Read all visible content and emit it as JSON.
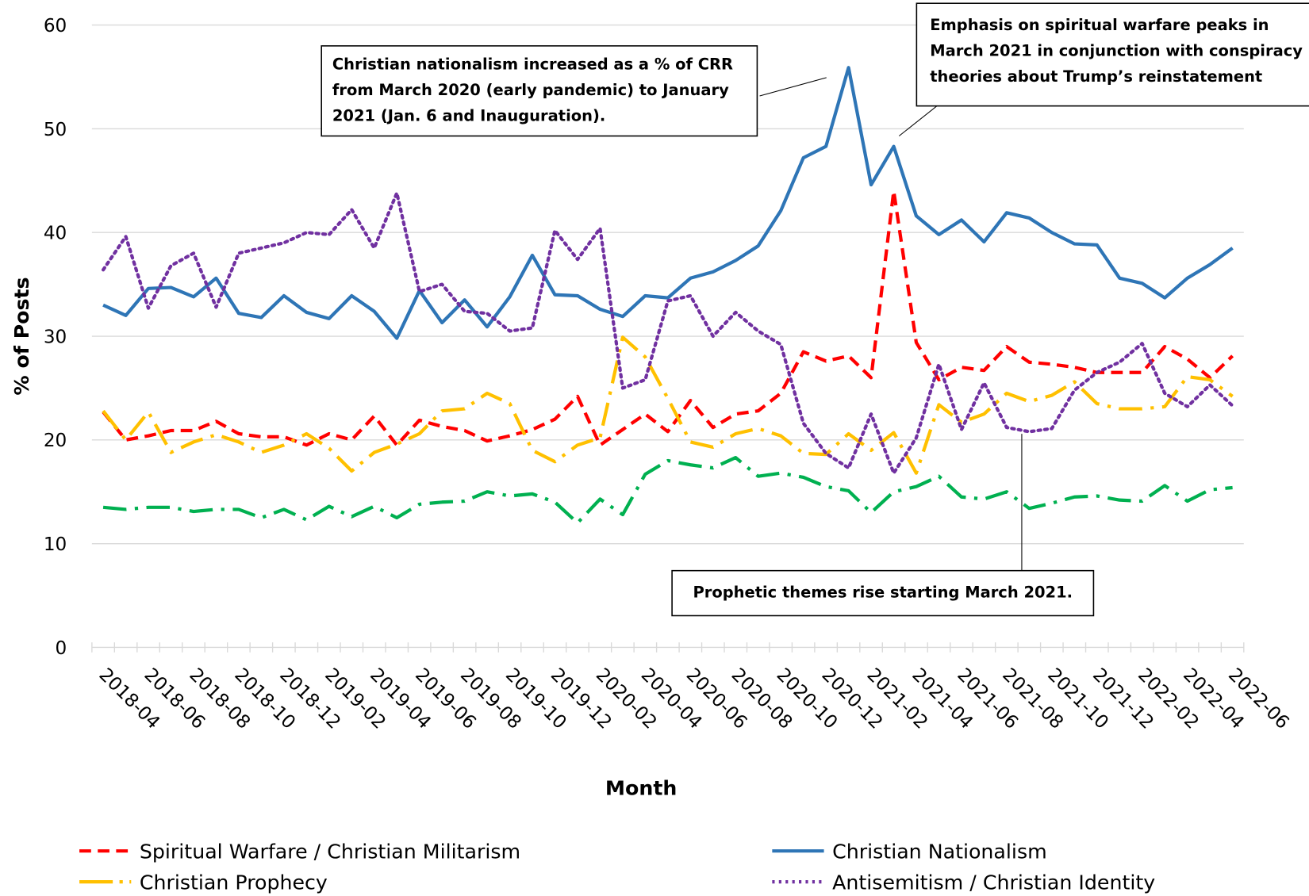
{
  "chart_data": {
    "type": "line",
    "x_label": "Month",
    "y_label": "% of Posts",
    "categories": [
      "2018-04",
      null,
      "2018-06",
      null,
      "2018-08",
      null,
      "2018-10",
      null,
      "2018-12",
      null,
      "2019-02",
      null,
      "2019-04",
      null,
      "2019-06",
      null,
      "2019-08",
      null,
      "2019-10",
      null,
      "2019-12",
      null,
      "2020-02",
      null,
      "2020-04",
      null,
      "2020-06",
      null,
      "2020-08",
      null,
      "2020-10",
      null,
      "2020-12",
      null,
      "2021-02",
      null,
      "2021-04",
      null,
      "2021-06",
      null,
      "2021-08",
      null,
      "2021-10",
      null,
      "2021-12",
      null,
      "2022-02",
      null,
      "2022-04",
      null,
      "2022-06"
    ],
    "ylim": [
      0,
      60
    ],
    "yticks": [
      0,
      10,
      20,
      30,
      40,
      50,
      60
    ],
    "grid": true,
    "series": [
      {
        "name": "Spiritual Warfare / Christian Militarism",
        "color": "#ff0000",
        "line_style": "dashed",
        "values": [
          22.7,
          20.0,
          20.4,
          20.9,
          20.9,
          21.8,
          20.6,
          20.3,
          20.3,
          19.5,
          20.6,
          20.0,
          22.3,
          19.5,
          21.9,
          21.3,
          20.9,
          19.9,
          20.4,
          21.0,
          22.0,
          24.2,
          19.5,
          21.0,
          22.5,
          20.8,
          23.8,
          21.2,
          22.5,
          22.8,
          24.5,
          28.5,
          27.6,
          28.1,
          26.0,
          44.0,
          29.4,
          25.8,
          27.0,
          26.7,
          29.0,
          27.5,
          27.3,
          27.0,
          26.5,
          26.5,
          26.5,
          29.0,
          27.8,
          26.0,
          28.1
        ]
      },
      {
        "name": "Christian Nationalism",
        "color": "#2e75b6",
        "line_style": "solid",
        "values": [
          33.0,
          32.0,
          34.6,
          34.7,
          33.8,
          35.6,
          32.2,
          31.8,
          33.9,
          32.3,
          31.7,
          33.9,
          32.4,
          29.8,
          34.4,
          31.3,
          33.5,
          30.9,
          33.8,
          37.8,
          34.0,
          33.9,
          32.6,
          31.9,
          33.9,
          33.7,
          35.6,
          36.2,
          37.3,
          38.7,
          42.1,
          47.2,
          48.3,
          55.9,
          44.6,
          48.3,
          41.6,
          39.8,
          41.2,
          39.1,
          41.9,
          41.4,
          40.0,
          38.9,
          38.8,
          35.6,
          35.1,
          33.7,
          35.6,
          36.9,
          38.5
        ]
      },
      {
        "name": "Christian Prophecy",
        "color": "#ffc000",
        "line_style": "dashdot",
        "values": [
          22.8,
          20.0,
          22.7,
          18.8,
          19.8,
          20.5,
          19.8,
          18.8,
          19.5,
          20.6,
          19.2,
          17.0,
          18.8,
          19.6,
          20.6,
          22.8,
          23.0,
          24.5,
          23.5,
          19.0,
          17.9,
          19.5,
          20.2,
          29.9,
          28.0,
          24.0,
          19.8,
          19.3,
          20.6,
          21.1,
          20.4,
          18.7,
          18.6,
          20.6,
          19.0,
          20.7,
          16.8,
          23.4,
          21.7,
          22.5,
          24.5,
          23.7,
          24.3,
          25.6,
          23.5,
          23.0,
          23.0,
          23.2,
          26.1,
          25.8,
          24.2
        ]
      },
      {
        "name": "Antisemitism / Christian Identity",
        "color": "#7030a0",
        "line_style": "dotted",
        "values": [
          36.4,
          39.6,
          32.7,
          36.8,
          38.0,
          32.8,
          38.0,
          38.5,
          39.0,
          40.0,
          39.8,
          42.2,
          38.5,
          43.8,
          34.3,
          35.0,
          32.4,
          32.2,
          30.5,
          30.8,
          40.2,
          37.4,
          40.4,
          25.0,
          25.8,
          33.4,
          33.9,
          30.0,
          32.3,
          30.5,
          29.2,
          21.6,
          18.7,
          17.3,
          22.5,
          16.8,
          20.2,
          27.3,
          21.0,
          25.5,
          21.2,
          20.8,
          21.1,
          24.8,
          26.5,
          27.5,
          29.3,
          24.5,
          23.2,
          25.3,
          23.3
        ]
      },
      {
        "color": "#00b050",
        "line_style": "dashdot",
        "values": [
          13.5,
          13.3,
          13.5,
          13.5,
          13.1,
          13.3,
          13.3,
          12.5,
          13.3,
          12.3,
          13.6,
          12.6,
          13.6,
          12.5,
          13.8,
          14.0,
          14.1,
          15.0,
          14.6,
          14.8,
          14.0,
          12.0,
          14.3,
          12.8,
          16.7,
          18.0,
          17.6,
          17.3,
          18.3,
          16.5,
          16.8,
          16.4,
          15.5,
          15.1,
          13.0,
          15.0,
          15.5,
          16.5,
          14.5,
          14.3,
          15.0,
          13.4,
          13.9,
          14.5,
          14.6,
          14.2,
          14.1,
          15.6,
          14.1,
          15.2,
          15.4
        ]
      }
    ],
    "annotations": [
      "Christian nationalism increased as a % of CRR from March 2020 (early pandemic) to January 2021 (Jan. 6 and Inauguration).",
      "Emphasis on spiritual warfare peaks in March 2021 in conjunction with conspiracy theories about Trump’s reinstatement",
      "Prophetic themes rise starting March 2021."
    ]
  }
}
